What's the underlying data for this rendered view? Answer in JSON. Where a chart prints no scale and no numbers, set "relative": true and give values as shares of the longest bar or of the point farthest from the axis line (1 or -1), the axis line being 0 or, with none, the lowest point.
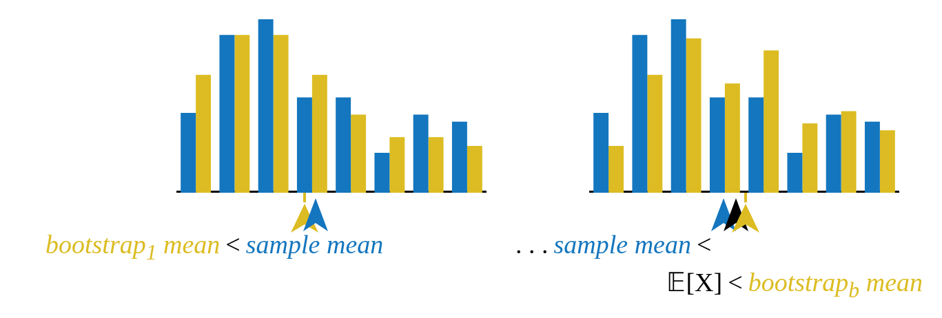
{
  "chart_data": [
    {
      "type": "bar",
      "relative": true,
      "categories": [
        null,
        null,
        null,
        null,
        null,
        null,
        null,
        null
      ],
      "series": [
        {
          "color": "#1476be",
          "values": [
            0.46,
            0.91,
            1,
            0.55,
            0.55,
            0.23,
            0.45,
            0.41
          ]
        },
        {
          "color": "#dcbc22",
          "values": [
            0.68,
            0.91,
            0.91,
            0.68,
            0.45,
            0.32,
            0.32,
            0.27
          ]
        }
      ],
      "annotations": [
        "bootstrap$_{1}$ mean",
        "<",
        "sample mean"
      ]
    },
    {
      "type": "bar",
      "relative": true,
      "categories": [
        null,
        null,
        null,
        null,
        null,
        null,
        null,
        null
      ],
      "series": [
        {
          "color": "#1476be",
          "values": [
            0.46,
            0.91,
            1,
            0.55,
            0.55,
            0.23,
            0.45,
            0.41
          ]
        },
        {
          "color": "#dcbc22",
          "values": [
            0.27,
            0.68,
            0.89,
            0.63,
            0.82,
            0.4,
            0.47,
            0.36
          ]
        }
      ],
      "annotations": [
        ". . .",
        "sample mean",
        "<",
        "𝔼[X]",
        "<",
        "bootstrap$_{b}$ mean"
      ]
    }
  ]
}
